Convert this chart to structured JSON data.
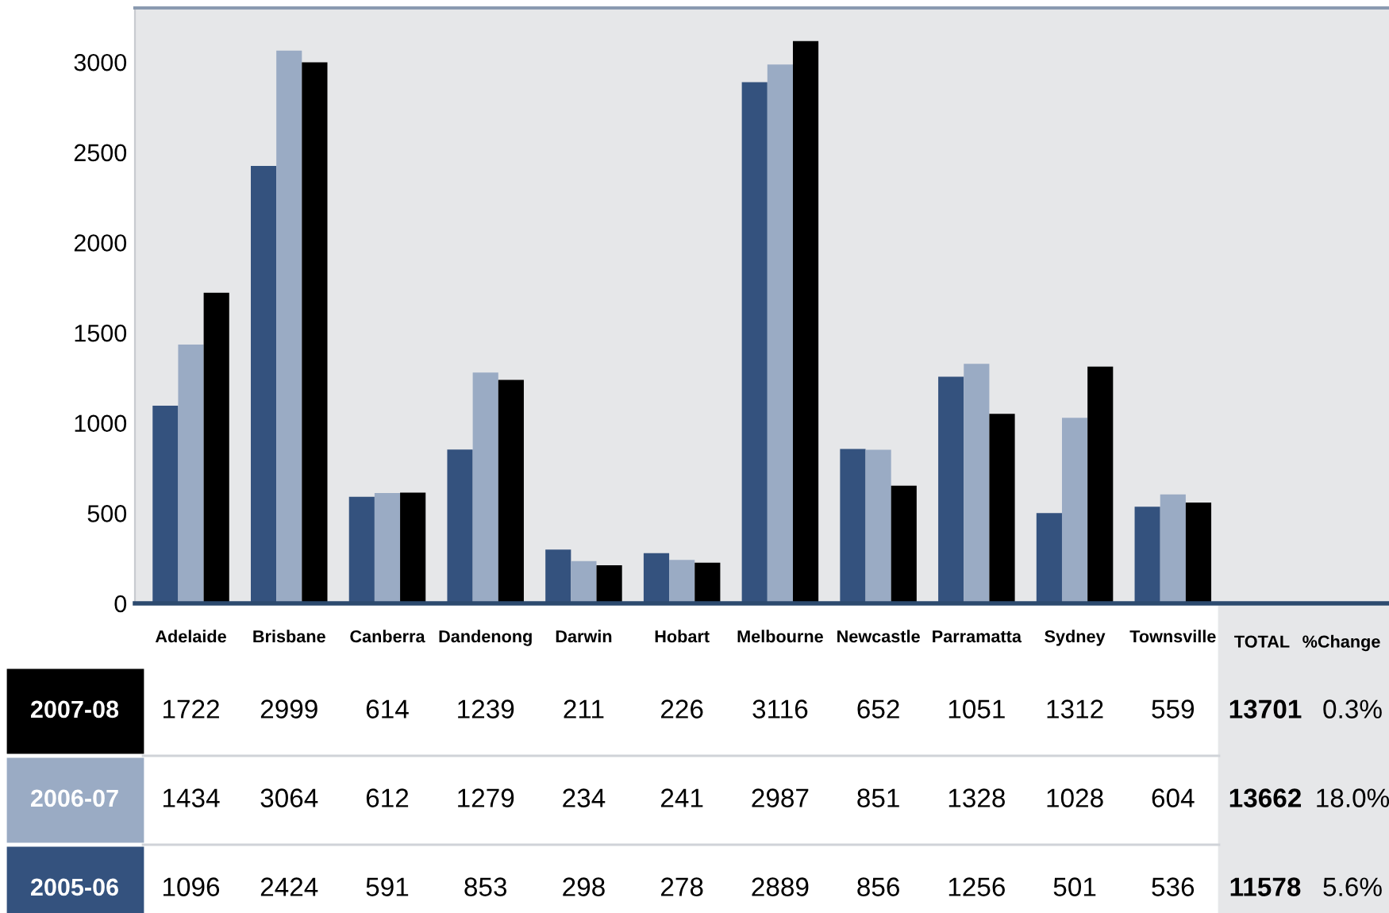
{
  "chart_data": {
    "type": "bar",
    "categories": [
      "Adelaide",
      "Brisbane",
      "Canberra",
      "Dandenong",
      "Darwin",
      "Hobart",
      "Melbourne",
      "Newcastle",
      "Parramatta",
      "Sydney",
      "Townsville"
    ],
    "series": [
      {
        "name": "2005-06",
        "color": "#34527e",
        "values": [
          1096,
          2424,
          591,
          853,
          298,
          278,
          2889,
          856,
          1256,
          501,
          536
        ]
      },
      {
        "name": "2006-07",
        "color": "#9aabc4",
        "values": [
          1434,
          3064,
          612,
          1279,
          234,
          241,
          2987,
          851,
          1328,
          1028,
          604
        ]
      },
      {
        "name": "2007-08",
        "color": "#000000",
        "values": [
          1722,
          2999,
          614,
          1239,
          211,
          226,
          3116,
          652,
          1051,
          1312,
          559
        ]
      }
    ],
    "ylim": [
      0,
      3300
    ],
    "yticks": [
      0,
      500,
      1000,
      1500,
      2000,
      2500,
      3000
    ],
    "data_labels": true,
    "grid": false,
    "legend": false,
    "annotations": [
      "TOTAL",
      "%Change",
      "11578",
      "5.6%",
      "13662",
      "18.0%",
      "13701",
      "0.3%"
    ]
  }
}
